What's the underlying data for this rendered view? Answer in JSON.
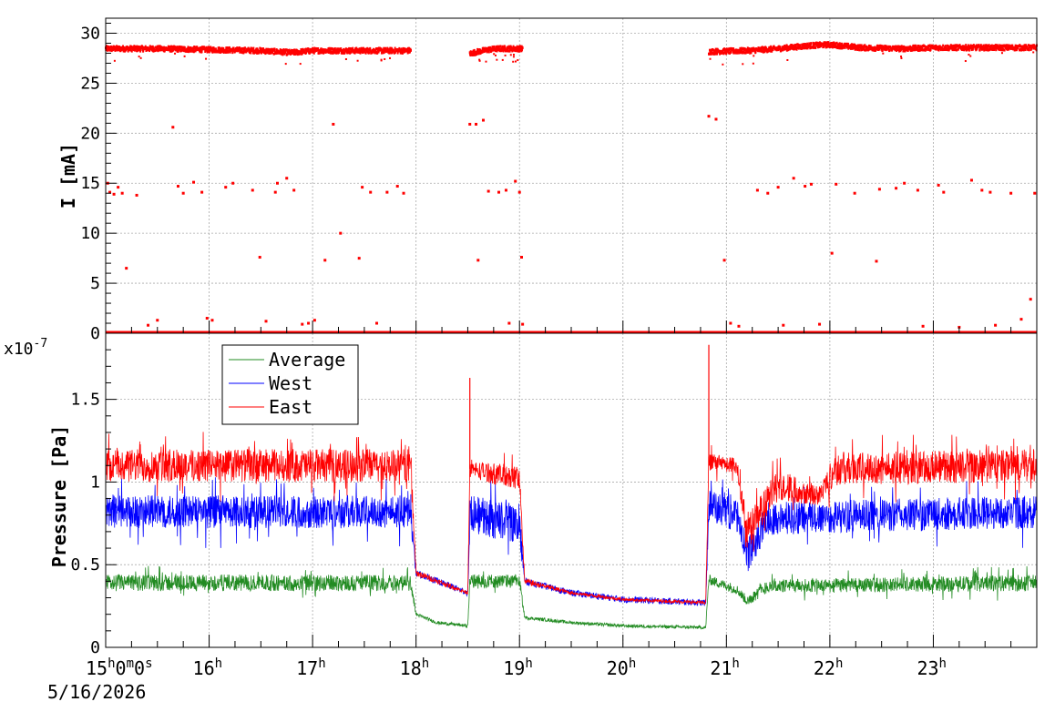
{
  "chart_data": [
    {
      "type": "scatter",
      "panel": "top",
      "ylabel": "I [mA]",
      "ylim": [
        0,
        31.5
      ],
      "yticks": [
        0,
        5,
        10,
        15,
        20,
        25,
        30
      ],
      "grid": true,
      "series_color": "#ff0000",
      "segments": [
        {
          "start_h": 15.0,
          "end_h": 17.95,
          "level_points": [
            [
              15.0,
              28.5
            ],
            [
              15.5,
              28.5
            ],
            [
              16.0,
              28.4
            ],
            [
              16.5,
              28.3
            ],
            [
              16.8,
              28.1
            ],
            [
              17.0,
              28.3
            ],
            [
              17.5,
              28.3
            ],
            [
              17.95,
              28.3
            ]
          ]
        },
        {
          "start_h": 18.52,
          "end_h": 19.03,
          "level_points": [
            [
              18.52,
              28.0
            ],
            [
              18.6,
              28.2
            ],
            [
              18.7,
              28.4
            ],
            [
              18.8,
              28.5
            ],
            [
              19.03,
              28.5
            ]
          ]
        },
        {
          "start_h": 20.83,
          "end_h": 24.0,
          "level_points": [
            [
              20.83,
              28.2
            ],
            [
              21.2,
              28.3
            ],
            [
              21.5,
              28.5
            ],
            [
              21.8,
              28.8
            ],
            [
              22.0,
              28.9
            ],
            [
              22.3,
              28.6
            ],
            [
              22.7,
              28.5
            ],
            [
              23.0,
              28.6
            ],
            [
              23.5,
              28.6
            ],
            [
              24.0,
              28.6
            ]
          ]
        }
      ],
      "outliers": [
        [
          15.02,
          15.0
        ],
        [
          15.04,
          14.1
        ],
        [
          15.08,
          13.9
        ],
        [
          15.12,
          14.6
        ],
        [
          15.16,
          14.0
        ],
        [
          15.2,
          6.5
        ],
        [
          15.3,
          13.8
        ],
        [
          15.41,
          0.8
        ],
        [
          15.5,
          1.3
        ],
        [
          15.65,
          20.6
        ],
        [
          15.7,
          14.7
        ],
        [
          15.75,
          14.0
        ],
        [
          15.85,
          15.1
        ],
        [
          15.93,
          14.1
        ],
        [
          15.98,
          1.5
        ],
        [
          16.03,
          1.3
        ],
        [
          16.16,
          14.6
        ],
        [
          16.23,
          15.0
        ],
        [
          16.42,
          14.3
        ],
        [
          16.49,
          7.6
        ],
        [
          16.55,
          1.2
        ],
        [
          16.64,
          14.1
        ],
        [
          16.66,
          15.0
        ],
        [
          16.75,
          15.5
        ],
        [
          16.82,
          14.3
        ],
        [
          16.9,
          0.9
        ],
        [
          16.96,
          1.0
        ],
        [
          17.02,
          1.3
        ],
        [
          17.12,
          7.3
        ],
        [
          17.2,
          20.9
        ],
        [
          17.27,
          10.0
        ],
        [
          17.45,
          7.5
        ],
        [
          17.48,
          14.6
        ],
        [
          17.56,
          14.1
        ],
        [
          17.62,
          1.0
        ],
        [
          17.72,
          14.1
        ],
        [
          17.82,
          14.7
        ],
        [
          17.88,
          14.0
        ],
        [
          18.52,
          20.9
        ],
        [
          18.58,
          20.9
        ],
        [
          18.6,
          7.3
        ],
        [
          18.65,
          21.3
        ],
        [
          18.7,
          14.2
        ],
        [
          18.8,
          14.1
        ],
        [
          18.87,
          14.3
        ],
        [
          18.9,
          1.0
        ],
        [
          18.96,
          15.2
        ],
        [
          19.0,
          14.1
        ],
        [
          19.02,
          7.6
        ],
        [
          19.03,
          0.9
        ],
        [
          20.83,
          21.7
        ],
        [
          20.9,
          21.4
        ],
        [
          20.98,
          7.3
        ],
        [
          21.04,
          1.0
        ],
        [
          21.12,
          0.7
        ],
        [
          21.3,
          14.3
        ],
        [
          21.4,
          14.0
        ],
        [
          21.5,
          14.6
        ],
        [
          21.55,
          0.8
        ],
        [
          21.65,
          15.5
        ],
        [
          21.76,
          14.7
        ],
        [
          21.82,
          14.9
        ],
        [
          21.9,
          0.9
        ],
        [
          22.02,
          8.0
        ],
        [
          22.06,
          14.9
        ],
        [
          22.24,
          14.0
        ],
        [
          22.45,
          7.2
        ],
        [
          22.48,
          14.4
        ],
        [
          22.64,
          14.5
        ],
        [
          22.72,
          15.0
        ],
        [
          22.85,
          14.3
        ],
        [
          22.9,
          0.7
        ],
        [
          23.05,
          14.8
        ],
        [
          23.1,
          14.1
        ],
        [
          23.25,
          0.6
        ],
        [
          23.37,
          15.3
        ],
        [
          23.47,
          14.3
        ],
        [
          23.55,
          14.1
        ],
        [
          23.6,
          0.8
        ],
        [
          23.75,
          14.0
        ],
        [
          23.85,
          1.4
        ],
        [
          23.94,
          3.4
        ],
        [
          23.98,
          14.0
        ]
      ]
    },
    {
      "type": "line",
      "panel": "bottom",
      "ylabel": "Pressure [Pa]",
      "exponent_label": "x10",
      "exponent_power": "-7",
      "ylim": [
        0,
        1.9
      ],
      "yticks": [
        0,
        0.5,
        1,
        1.5
      ],
      "ytick_labels": [
        "0",
        "0.5",
        "1",
        "1.5"
      ],
      "grid": true,
      "legend_position": "top-left",
      "series": [
        {
          "name": "Average",
          "color": "#228b22",
          "profile": [
            [
              15.0,
              0.39,
              0.05
            ],
            [
              17.95,
              0.39,
              0.05
            ],
            [
              18.0,
              0.2,
              0.01
            ],
            [
              18.2,
              0.15,
              0.01
            ],
            [
              18.5,
              0.13,
              0.01
            ],
            [
              18.52,
              0.4,
              0.04
            ],
            [
              19.0,
              0.4,
              0.04
            ],
            [
              19.05,
              0.18,
              0.01
            ],
            [
              19.5,
              0.15,
              0.01
            ],
            [
              20.0,
              0.13,
              0.01
            ],
            [
              20.8,
              0.12,
              0.01
            ],
            [
              20.83,
              0.41,
              0.03
            ],
            [
              21.1,
              0.35,
              0.03
            ],
            [
              21.2,
              0.28,
              0.03
            ],
            [
              21.4,
              0.37,
              0.04
            ],
            [
              24.0,
              0.39,
              0.05
            ]
          ]
        },
        {
          "name": "West",
          "color": "#0000ff",
          "profile": [
            [
              15.0,
              0.82,
              0.1
            ],
            [
              17.95,
              0.82,
              0.1
            ],
            [
              18.0,
              0.45,
              0.02
            ],
            [
              18.5,
              0.33,
              0.02
            ],
            [
              18.52,
              0.8,
              0.12
            ],
            [
              19.0,
              0.75,
              0.12
            ],
            [
              19.05,
              0.4,
              0.02
            ],
            [
              19.5,
              0.33,
              0.02
            ],
            [
              20.0,
              0.29,
              0.02
            ],
            [
              20.8,
              0.27,
              0.02
            ],
            [
              20.83,
              0.85,
              0.1
            ],
            [
              21.1,
              0.8,
              0.1
            ],
            [
              21.2,
              0.55,
              0.1
            ],
            [
              21.4,
              0.78,
              0.1
            ],
            [
              24.0,
              0.82,
              0.1
            ]
          ]
        },
        {
          "name": "East",
          "color": "#ff0000",
          "profile": [
            [
              15.0,
              1.1,
              0.1
            ],
            [
              17.95,
              1.1,
              0.1
            ],
            [
              18.0,
              0.45,
              0.02
            ],
            [
              18.5,
              0.33,
              0.01
            ],
            [
              18.52,
              1.08,
              0.05
            ],
            [
              19.0,
              1.02,
              0.08
            ],
            [
              19.05,
              0.4,
              0.02
            ],
            [
              19.5,
              0.33,
              0.01
            ],
            [
              20.0,
              0.29,
              0.01
            ],
            [
              20.8,
              0.27,
              0.01
            ],
            [
              20.83,
              1.12,
              0.05
            ],
            [
              21.1,
              1.1,
              0.05
            ],
            [
              21.2,
              0.7,
              0.1
            ],
            [
              21.5,
              0.98,
              0.1
            ],
            [
              21.9,
              0.92,
              0.06
            ],
            [
              22.05,
              1.08,
              0.1
            ],
            [
              24.0,
              1.1,
              0.1
            ]
          ]
        }
      ],
      "spikes": [
        {
          "series": "East",
          "x_h": 18.52,
          "y": 1.63
        },
        {
          "series": "East",
          "x_h": 20.83,
          "y": 1.83
        }
      ]
    }
  ],
  "x_axis": {
    "range_h": [
      15,
      24
    ],
    "tick_labels": [
      {
        "h": 15,
        "base": "15",
        "sup": "h",
        "extra": "0",
        "sup2": "m",
        "extra2": "0",
        "sup3": "s"
      },
      {
        "h": 16,
        "base": "16",
        "sup": "h"
      },
      {
        "h": 17,
        "base": "17",
        "sup": "h"
      },
      {
        "h": 18,
        "base": "18",
        "sup": "h"
      },
      {
        "h": 19,
        "base": "19",
        "sup": "h"
      },
      {
        "h": 20,
        "base": "20",
        "sup": "h"
      },
      {
        "h": 21,
        "base": "21",
        "sup": "h"
      },
      {
        "h": 22,
        "base": "22",
        "sup": "h"
      },
      {
        "h": 23,
        "base": "23",
        "sup": "h"
      }
    ],
    "date_label": "5/16/2026"
  }
}
